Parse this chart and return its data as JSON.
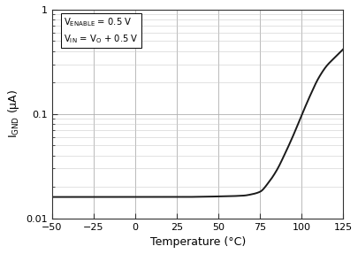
{
  "title": "",
  "xlabel": "Temperature (°C)",
  "ylabel": "I$_\\mathregular{GND}$ (μA)",
  "xlim": [
    -50,
    125
  ],
  "ylim": [
    0.01,
    1
  ],
  "x_ticks": [
    -50,
    -25,
    0,
    25,
    50,
    75,
    100,
    125
  ],
  "curve_color": "#1a1a1a",
  "curve_linewidth": 1.4,
  "grid_color_major": "#b0b0b0",
  "grid_color_minor": "#cccccc",
  "background_color": "#ffffff",
  "text_color": "#000000",
  "curve_x": [
    -50,
    -40,
    -25,
    0,
    25,
    50,
    65,
    70,
    75,
    80,
    85,
    90,
    95,
    100,
    105,
    110,
    115,
    120,
    125
  ],
  "curve_y": [
    0.016,
    0.016,
    0.016,
    0.016,
    0.016,
    0.0162,
    0.0165,
    0.017,
    0.018,
    0.022,
    0.029,
    0.042,
    0.063,
    0.098,
    0.15,
    0.22,
    0.29,
    0.35,
    0.42
  ]
}
